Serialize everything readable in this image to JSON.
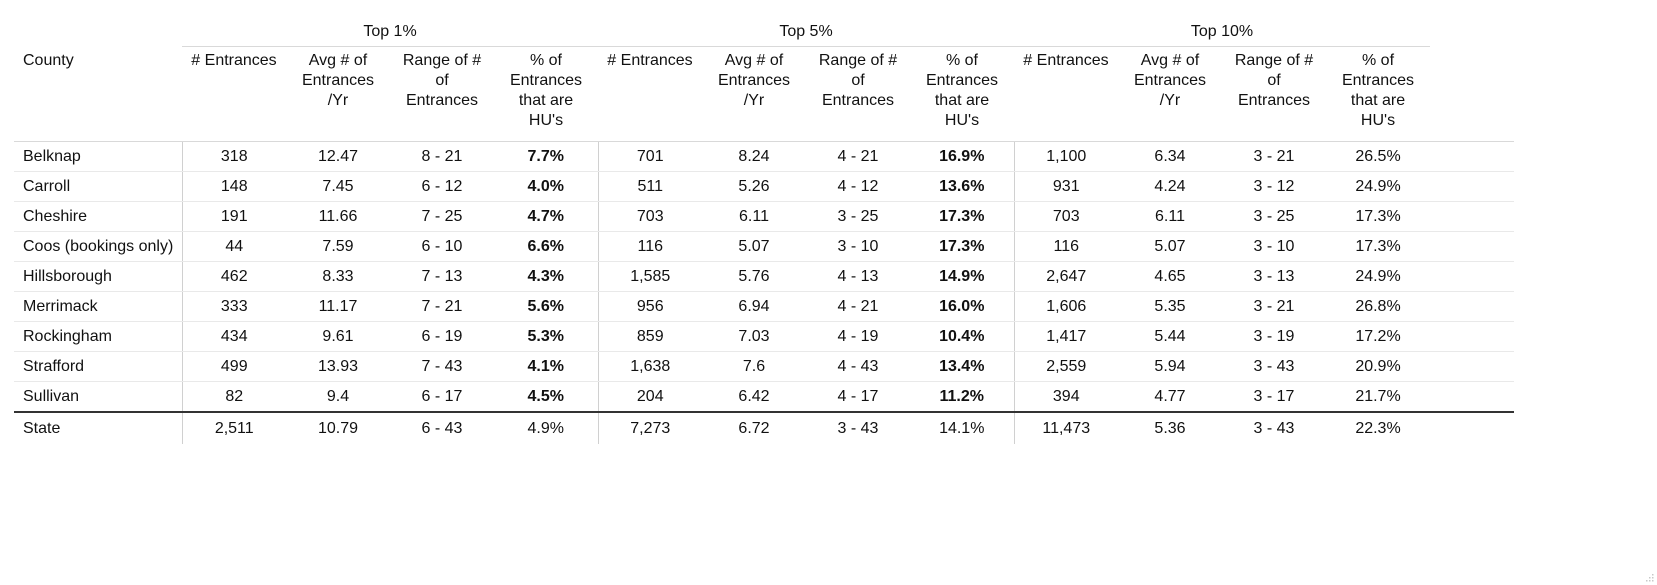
{
  "groups": [
    "Top 1%",
    "Top 5%",
    "Top 10%"
  ],
  "headers": {
    "county": "County",
    "entrances": "# Entrances",
    "avg": "Avg # of\nEntrances\n/Yr",
    "range": "Range of #\nof\nEntrances",
    "pct": "% of\nEntrances\nthat are\nHU's"
  },
  "rows": [
    {
      "county": "Belknap",
      "t1": [
        "318",
        "12.47",
        "8 - 21",
        "7.7%"
      ],
      "t5": [
        "701",
        "8.24",
        "4 - 21",
        "16.9%"
      ],
      "t10": [
        "1,100",
        "6.34",
        "3 - 21",
        "26.5%"
      ]
    },
    {
      "county": "Carroll",
      "t1": [
        "148",
        "7.45",
        "6 - 12",
        "4.0%"
      ],
      "t5": [
        "511",
        "5.26",
        "4 - 12",
        "13.6%"
      ],
      "t10": [
        "931",
        "4.24",
        "3 - 12",
        "24.9%"
      ]
    },
    {
      "county": "Cheshire",
      "t1": [
        "191",
        "11.66",
        "7 - 25",
        "4.7%"
      ],
      "t5": [
        "703",
        "6.11",
        "3 - 25",
        "17.3%"
      ],
      "t10": [
        "703",
        "6.11",
        "3 - 25",
        "17.3%"
      ]
    },
    {
      "county": "Coos (bookings only)",
      "t1": [
        "44",
        "7.59",
        "6 - 10",
        "6.6%"
      ],
      "t5": [
        "116",
        "5.07",
        "3 - 10",
        "17.3%"
      ],
      "t10": [
        "116",
        "5.07",
        "3 - 10",
        "17.3%"
      ]
    },
    {
      "county": "Hillsborough",
      "t1": [
        "462",
        "8.33",
        "7 - 13",
        "4.3%"
      ],
      "t5": [
        "1,585",
        "5.76",
        "4 - 13",
        "14.9%"
      ],
      "t10": [
        "2,647",
        "4.65",
        "3 - 13",
        "24.9%"
      ]
    },
    {
      "county": "Merrimack",
      "t1": [
        "333",
        "11.17",
        "7 - 21",
        "5.6%"
      ],
      "t5": [
        "956",
        "6.94",
        "4 - 21",
        "16.0%"
      ],
      "t10": [
        "1,606",
        "5.35",
        "3 - 21",
        "26.8%"
      ]
    },
    {
      "county": "Rockingham",
      "t1": [
        "434",
        "9.61",
        "6 - 19",
        "5.3%"
      ],
      "t5": [
        "859",
        "7.03",
        "4 - 19",
        "10.4%"
      ],
      "t10": [
        "1,417",
        "5.44",
        "3 - 19",
        "17.2%"
      ]
    },
    {
      "county": "Strafford",
      "t1": [
        "499",
        "13.93",
        "7 - 43",
        "4.1%"
      ],
      "t5": [
        "1,638",
        "7.6",
        "4 - 43",
        "13.4%"
      ],
      "t10": [
        "2,559",
        "5.94",
        "3 - 43",
        "20.9%"
      ]
    },
    {
      "county": "Sullivan",
      "t1": [
        "82",
        "9.4",
        "6 - 17",
        "4.5%"
      ],
      "t5": [
        "204",
        "6.42",
        "4 - 17",
        "11.2%"
      ],
      "t10": [
        "394",
        "4.77",
        "3 - 17",
        "21.7%"
      ]
    }
  ],
  "state": {
    "county": "State",
    "t1": [
      "2,511",
      "10.79",
      "6 - 43",
      "4.9%"
    ],
    "t5": [
      "7,273",
      "6.72",
      "3 - 43",
      "14.1%"
    ],
    "t10": [
      "11,473",
      "5.36",
      "3 - 43",
      "22.3%"
    ]
  }
}
